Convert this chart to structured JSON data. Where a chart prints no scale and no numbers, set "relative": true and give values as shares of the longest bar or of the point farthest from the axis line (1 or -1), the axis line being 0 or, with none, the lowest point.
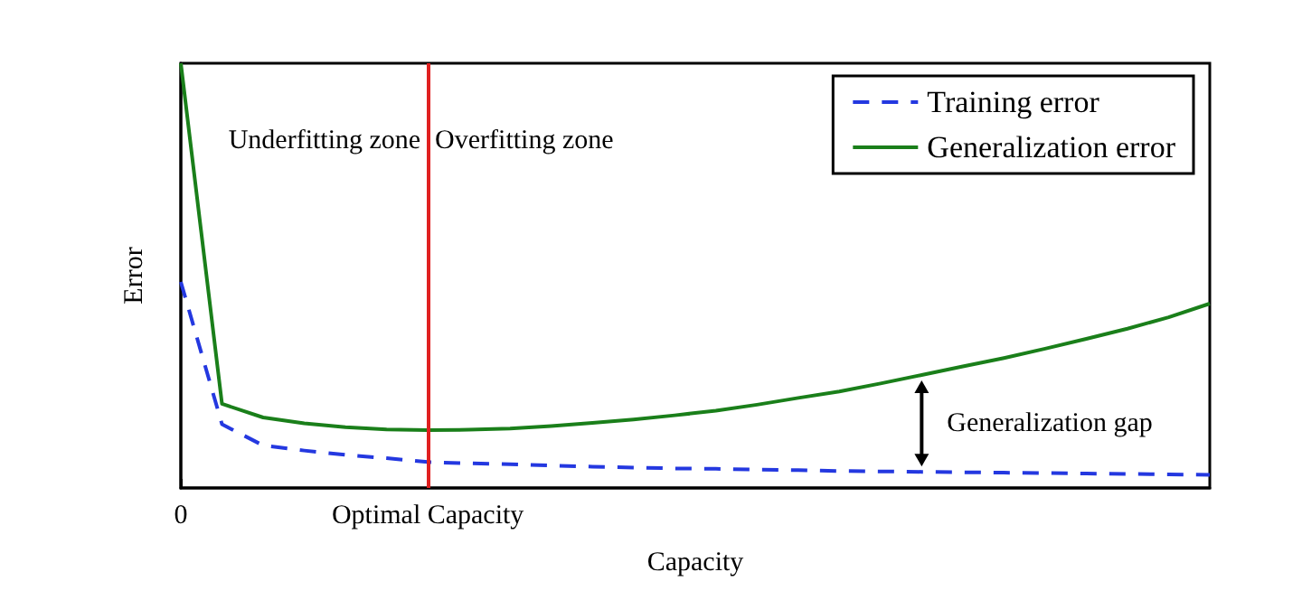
{
  "chart_data": {
    "type": "line",
    "relative": true,
    "xlabel": "Capacity",
    "ylabel": "Error",
    "tick_labels": "x",
    "legend": "top right",
    "marker": "none",
    "categories": [
      "0",
      null,
      null,
      null,
      null,
      null,
      "Optimal Capacity",
      null,
      null,
      null,
      null,
      null,
      null,
      null,
      null,
      null,
      null,
      null,
      null,
      null,
      null,
      null,
      null,
      null,
      null,
      null
    ],
    "series": [
      {
        "name": "Training error",
        "color": "#2438e0",
        "line_style": "dashed",
        "values": [
          0.485,
          0.15,
          0.1,
          0.088,
          0.078,
          0.07,
          0.061,
          0.058,
          0.056,
          0.053,
          0.05,
          0.048,
          0.046,
          0.045,
          0.043,
          0.042,
          0.04,
          0.039,
          0.038,
          0.037,
          0.036,
          0.035,
          0.034,
          0.033,
          0.032,
          0.031
        ]
      },
      {
        "name": "Generalization error",
        "color": "#1a7f1a",
        "line_style": "solid",
        "values": [
          1.0,
          0.198,
          0.166,
          0.152,
          0.143,
          0.138,
          0.136,
          0.137,
          0.14,
          0.146,
          0.153,
          0.161,
          0.171,
          0.182,
          0.196,
          0.212,
          0.227,
          0.246,
          0.266,
          0.286,
          0.306,
          0.328,
          0.351,
          0.375,
          0.402,
          0.434
        ]
      }
    ],
    "ref_lines": [
      {
        "axis": "x",
        "value": "Optimal Capacity",
        "color": "#e02020"
      }
    ],
    "annotations": [
      "Underfitting zone",
      "Overfitting zone",
      "Generalization gap"
    ]
  }
}
